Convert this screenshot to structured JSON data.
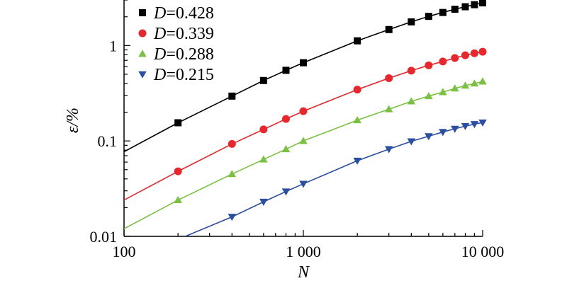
{
  "chart_data": {
    "type": "line",
    "title": "",
    "xlabel": "N",
    "ylabel": "ε/%",
    "xscale": "log",
    "yscale": "log",
    "xlim": [
      100,
      10000
    ],
    "ylim": [
      0.01,
      3
    ],
    "grid": false,
    "legend_position": "top-left",
    "x_ticks": [
      {
        "value": 100,
        "label": "100"
      },
      {
        "value": 1000,
        "label": "1 000"
      },
      {
        "value": 10000,
        "label": "10 000"
      }
    ],
    "y_ticks": [
      {
        "value": 0.01,
        "label": "0.01"
      },
      {
        "value": 0.1,
        "label": "0.1"
      },
      {
        "value": 1,
        "label": "1"
      }
    ],
    "series": [
      {
        "name": "D=0.428",
        "var": "D",
        "eq": "=0.428",
        "color": "#000000",
        "marker": "square",
        "x": [
          200,
          400,
          600,
          800,
          1000,
          2000,
          3000,
          4000,
          5000,
          6000,
          7000,
          8000,
          9000,
          10000
        ],
        "y": [
          0.155,
          0.295,
          0.43,
          0.55,
          0.66,
          1.12,
          1.47,
          1.77,
          2.02,
          2.22,
          2.4,
          2.55,
          2.68,
          2.8
        ],
        "fit_y": [
          0.077,
          2.85
        ]
      },
      {
        "name": "D=0.339",
        "var": "D",
        "eq": "=0.339",
        "color": "#e8262b",
        "marker": "circle",
        "x": [
          200,
          400,
          600,
          800,
          1000,
          2000,
          3000,
          4000,
          5000,
          6000,
          7000,
          8000,
          9000,
          10000
        ],
        "y": [
          0.048,
          0.093,
          0.132,
          0.17,
          0.205,
          0.345,
          0.455,
          0.545,
          0.62,
          0.68,
          0.74,
          0.79,
          0.83,
          0.86
        ],
        "fit_y": [
          0.024,
          0.87
        ]
      },
      {
        "name": "D=0.288",
        "var": "D",
        "eq": "=0.288",
        "color": "#7ac142",
        "marker": "triangle-up",
        "x": [
          200,
          400,
          600,
          800,
          1000,
          2000,
          3000,
          4000,
          5000,
          6000,
          7000,
          8000,
          9000,
          10000
        ],
        "y": [
          0.024,
          0.045,
          0.064,
          0.082,
          0.1,
          0.165,
          0.215,
          0.26,
          0.295,
          0.325,
          0.355,
          0.38,
          0.4,
          0.42
        ],
        "fit_y": [
          0.012,
          0.42
        ]
      },
      {
        "name": "D=0.215",
        "var": "D",
        "eq": "=0.215",
        "color": "#2a4ea2",
        "marker": "triangle-down",
        "x": [
          400,
          600,
          800,
          1000,
          2000,
          3000,
          4000,
          5000,
          6000,
          7000,
          8000,
          9000,
          10000
        ],
        "y": [
          0.016,
          0.023,
          0.0295,
          0.0355,
          0.062,
          0.082,
          0.099,
          0.112,
          0.124,
          0.134,
          0.143,
          0.15,
          0.156
        ],
        "fit_y": [
          0.0054,
          0.156
        ]
      }
    ]
  }
}
